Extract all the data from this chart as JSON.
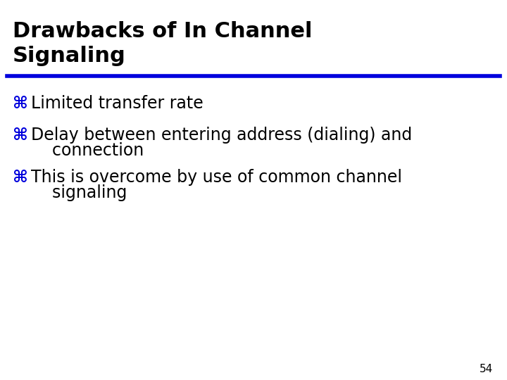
{
  "title_line1": "Drawbacks of In Channel",
  "title_line2": "Signaling",
  "title_color": "#000000",
  "title_fontsize": 22,
  "title_bold": true,
  "separator_color": "#0000DD",
  "separator_linewidth": 4,
  "bullet_color": "#0000DD",
  "bullet_char": "⌘",
  "bullet_fontsize": 17,
  "text_color": "#000000",
  "text_fontsize": 17,
  "background_color": "#ffffff",
  "bullets": [
    {
      "text": "Limited transfer rate",
      "continuation": null
    },
    {
      "text": "Delay between entering address (dialing) and",
      "continuation": "    connection"
    },
    {
      "text": "This is overcome by use of common channel",
      "continuation": "    signaling"
    }
  ],
  "page_number": "54",
  "page_number_fontsize": 11,
  "page_number_color": "#000000"
}
